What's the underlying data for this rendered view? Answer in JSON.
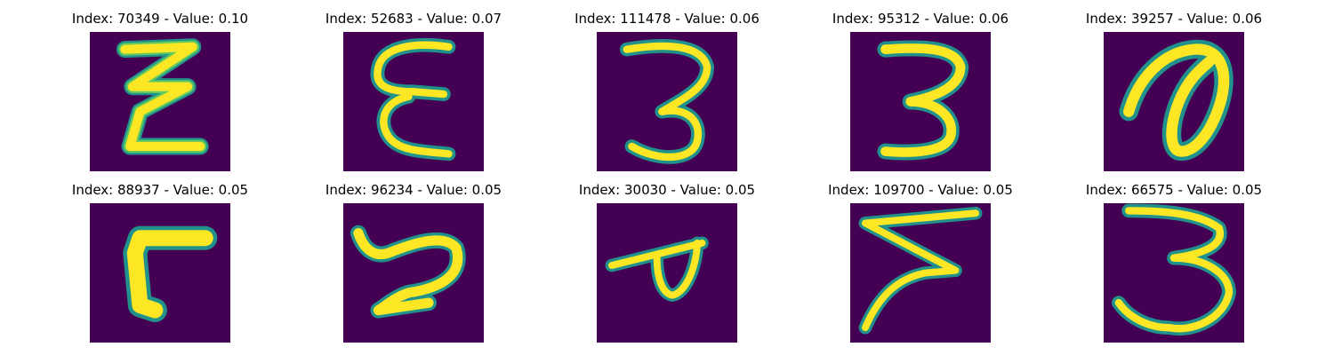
{
  "figure": {
    "colors": {
      "background": "#440154",
      "stroke_outer": "#21918c",
      "stroke_mid": "#5ec962",
      "stroke_core": "#fde725"
    },
    "panels": [
      {
        "title": "Index: 70349 - Value: 0.10",
        "glyph": "E-like"
      },
      {
        "title": "Index: 52683 - Value: 0.07",
        "glyph": "E-like"
      },
      {
        "title": "Index: 111478 - Value: 0.06",
        "glyph": "3"
      },
      {
        "title": "Index: 95312 - Value: 0.06",
        "glyph": "3"
      },
      {
        "title": "Index: 39257 - Value: 0.06",
        "glyph": "loop"
      },
      {
        "title": "Index: 88937 - Value: 0.05",
        "glyph": "L-like"
      },
      {
        "title": "Index: 96234 - Value: 0.05",
        "glyph": "scribble"
      },
      {
        "title": "Index: 30030 - Value: 0.05",
        "glyph": "d-like"
      },
      {
        "title": "Index: 109700 - Value: 0.05",
        "glyph": "Z-like"
      },
      {
        "title": "Index: 66575 - Value: 0.05",
        "glyph": "3"
      }
    ]
  }
}
